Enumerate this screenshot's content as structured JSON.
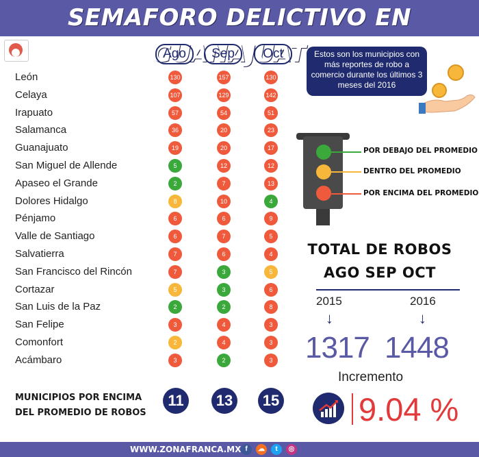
{
  "header": {
    "title": "SEMAFORO DELICTIVO EN GUANAJUATO"
  },
  "months": [
    "Ago",
    "Sep",
    "Oct"
  ],
  "colors": {
    "red": "#f05a3c",
    "green": "#3aa83a",
    "yellow": "#f6b73a",
    "navy": "#1f2b6e",
    "purple": "#5a59a6"
  },
  "municipalities": [
    {
      "name": "León",
      "values": [
        "130",
        "157",
        "130"
      ],
      "colors": [
        "red",
        "red",
        "red"
      ]
    },
    {
      "name": "Celaya",
      "values": [
        "107",
        "129",
        "142"
      ],
      "colors": [
        "red",
        "red",
        "red"
      ]
    },
    {
      "name": "Irapuato",
      "values": [
        "57",
        "54",
        "51"
      ],
      "colors": [
        "red",
        "red",
        "red"
      ]
    },
    {
      "name": "Salamanca",
      "values": [
        "36",
        "20",
        "23"
      ],
      "colors": [
        "red",
        "red",
        "red"
      ]
    },
    {
      "name": "Guanajuato",
      "values": [
        "19",
        "20",
        "17"
      ],
      "colors": [
        "red",
        "red",
        "red"
      ]
    },
    {
      "name": "San Miguel de Allende",
      "values": [
        "5",
        "12",
        "12"
      ],
      "colors": [
        "green",
        "red",
        "red"
      ]
    },
    {
      "name": "Apaseo el Grande",
      "values": [
        "2",
        "7",
        "13"
      ],
      "colors": [
        "green",
        "red",
        "red"
      ]
    },
    {
      "name": "Dolores Hidalgo",
      "values": [
        "8",
        "10",
        "4"
      ],
      "colors": [
        "yellow",
        "red",
        "green"
      ]
    },
    {
      "name": "Pénjamo",
      "values": [
        "6",
        "6",
        "9"
      ],
      "colors": [
        "red",
        "red",
        "red"
      ]
    },
    {
      "name": "Valle de Santiago",
      "values": [
        "6",
        "7",
        "5"
      ],
      "colors": [
        "red",
        "red",
        "red"
      ]
    },
    {
      "name": "Salvatierra",
      "values": [
        "7",
        "6",
        "4"
      ],
      "colors": [
        "red",
        "red",
        "red"
      ]
    },
    {
      "name": "San Francisco del Rincón",
      "values": [
        "7",
        "3",
        "5"
      ],
      "colors": [
        "red",
        "green",
        "yellow"
      ]
    },
    {
      "name": "Cortazar",
      "values": [
        "5",
        "3",
        "6"
      ],
      "colors": [
        "yellow",
        "green",
        "red"
      ]
    },
    {
      "name": "San Luis de la Paz",
      "values": [
        "2",
        "2",
        "8"
      ],
      "colors": [
        "green",
        "green",
        "red"
      ]
    },
    {
      "name": "San Felipe",
      "values": [
        "3",
        "4",
        "3"
      ],
      "colors": [
        "red",
        "red",
        "red"
      ]
    },
    {
      "name": "Comonfort",
      "values": [
        "2",
        "4",
        "3"
      ],
      "colors": [
        "yellow",
        "red",
        "red"
      ]
    },
    {
      "name": "Acámbaro",
      "values": [
        "3",
        "2",
        "3"
      ],
      "colors": [
        "red",
        "green",
        "red"
      ]
    }
  ],
  "summary": {
    "label_line1": "MUNICIPIOS POR ENCIMA",
    "label_line2": "DEL PROMEDIO DE ROBOS",
    "counts": [
      "11",
      "13",
      "15"
    ]
  },
  "note": {
    "text": "Estos son los municipios con más reportes de robo a comercio durante los últimos 3 meses del 2016"
  },
  "legend": {
    "green": "POR DEBAJO DEL PROMEDIO",
    "yellow": "DENTRO DEL PROMEDIO",
    "red": "POR ENCIMA DEL PROMEDIO"
  },
  "totals": {
    "title_line1": "TOTAL DE ROBOS",
    "title_line2": "AGO SEP OCT",
    "year1": "2015",
    "year2": "2016",
    "arrow": "↓",
    "value1": "1317",
    "value2": "1448"
  },
  "increment": {
    "label": "Incremento",
    "value": "9.04 %"
  },
  "footer": {
    "text": "WWW.ZONAFRANCA.MX",
    "social": [
      {
        "icon": "facebook-icon",
        "glyph": "f",
        "color": "#3b5998"
      },
      {
        "icon": "soundcloud-icon",
        "glyph": "☁",
        "color": "#f26f23"
      },
      {
        "icon": "twitter-icon",
        "glyph": "t",
        "color": "#1da1f2"
      },
      {
        "icon": "instagram-icon",
        "glyph": "◎",
        "color": "#c13584"
      }
    ]
  }
}
